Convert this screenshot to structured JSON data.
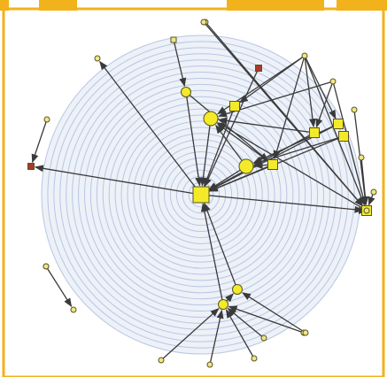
{
  "theme": {
    "frame_color": "#f2b21b",
    "background": "#ffffff",
    "ring_color": "#b9c6e2",
    "edge_color": "#3a3a3a",
    "node_fill": "#f3ea2a",
    "node_stroke": "#5b5420",
    "leaf_fill": "#efe68a",
    "highlight_node_fill": "#a83a2a"
  },
  "graph": {
    "layout": "radial",
    "ring_count": 26,
    "nodes": [
      {
        "id": "hub",
        "shape": "square",
        "kind": "root"
      },
      {
        "id": "n2",
        "shape": "circle",
        "kind": "major"
      },
      {
        "id": "n3",
        "shape": "circle",
        "kind": "major"
      },
      {
        "id": "n4",
        "shape": "circle",
        "kind": "minor"
      },
      {
        "id": "n5",
        "shape": "square",
        "kind": "minor"
      },
      {
        "id": "n6",
        "shape": "square",
        "kind": "minor"
      },
      {
        "id": "n7",
        "shape": "square",
        "kind": "minor"
      },
      {
        "id": "n8",
        "shape": "square",
        "kind": "minor"
      },
      {
        "id": "n9",
        "shape": "circle",
        "kind": "minor"
      },
      {
        "id": "n10",
        "shape": "circle",
        "kind": "minor"
      },
      {
        "id": "n11",
        "shape": "square",
        "kind": "minor"
      },
      {
        "id": "n12",
        "shape": "square",
        "kind": "minor"
      },
      {
        "id": "red1",
        "shape": "square",
        "kind": "highlight"
      },
      {
        "id": "red2",
        "shape": "square",
        "kind": "highlight"
      },
      {
        "id": "a1",
        "shape": "circle",
        "kind": "leaf"
      },
      {
        "id": "a2",
        "shape": "square",
        "kind": "leaf"
      },
      {
        "id": "a3",
        "shape": "circle",
        "kind": "leaf"
      },
      {
        "id": "a4",
        "shape": "circle",
        "kind": "leaf"
      },
      {
        "id": "a5",
        "shape": "circle",
        "kind": "leaf"
      },
      {
        "id": "a6",
        "shape": "circle",
        "kind": "leaf"
      },
      {
        "id": "a7",
        "shape": "circle",
        "kind": "leaf"
      },
      {
        "id": "a8",
        "shape": "circle",
        "kind": "leaf"
      },
      {
        "id": "a9",
        "shape": "circle",
        "kind": "leaf"
      },
      {
        "id": "a10",
        "shape": "circle",
        "kind": "leaf"
      },
      {
        "id": "a11",
        "shape": "circle",
        "kind": "leaf"
      },
      {
        "id": "a12",
        "shape": "circle",
        "kind": "leaf"
      },
      {
        "id": "a13",
        "shape": "circle",
        "kind": "leaf"
      },
      {
        "id": "a14",
        "shape": "circle",
        "kind": "leaf"
      },
      {
        "id": "a15",
        "shape": "circle",
        "kind": "leaf"
      },
      {
        "id": "a16",
        "shape": "circle",
        "kind": "leaf"
      },
      {
        "id": "a17",
        "shape": "circle",
        "kind": "leaf"
      },
      {
        "id": "a18",
        "shape": "circle",
        "kind": "leaf"
      },
      {
        "id": "a19",
        "shape": "circle",
        "kind": "leaf"
      },
      {
        "id": "a20",
        "shape": "circle",
        "kind": "leaf"
      }
    ],
    "edges": [
      [
        "hub",
        "a1"
      ],
      [
        "hub",
        "red1"
      ],
      [
        "hub",
        "a15"
      ],
      [
        "n2",
        "hub"
      ],
      [
        "n3",
        "hub"
      ],
      [
        "n4",
        "hub"
      ],
      [
        "n5",
        "hub"
      ],
      [
        "n6",
        "hub"
      ],
      [
        "n7",
        "hub"
      ],
      [
        "n8",
        "hub"
      ],
      [
        "n9",
        "hub"
      ],
      [
        "n10",
        "hub"
      ],
      [
        "n11",
        "hub"
      ],
      [
        "red2",
        "hub"
      ],
      [
        "a13",
        "n3"
      ],
      [
        "a13",
        "n5"
      ],
      [
        "a13",
        "n6"
      ],
      [
        "a13",
        "n7"
      ],
      [
        "a13",
        "n11"
      ],
      [
        "a13",
        "n12"
      ],
      [
        "a14",
        "n3"
      ],
      [
        "a14",
        "n7"
      ],
      [
        "a14",
        "n12"
      ],
      [
        "a15",
        "n3"
      ],
      [
        "a15",
        "n12"
      ],
      [
        "a12",
        "n12"
      ],
      [
        "a16",
        "n12"
      ],
      [
        "a17",
        "n12"
      ],
      [
        "n6",
        "n2"
      ],
      [
        "n11",
        "n2"
      ],
      [
        "n8",
        "n2"
      ],
      [
        "n2",
        "n3"
      ],
      [
        "n6",
        "n3"
      ],
      [
        "n7",
        "n3"
      ],
      [
        "n4",
        "n6"
      ],
      [
        "a2",
        "n4"
      ],
      [
        "n9",
        "n10"
      ],
      [
        "a3",
        "n9"
      ],
      [
        "a4",
        "n9"
      ],
      [
        "a5",
        "n9"
      ],
      [
        "a6",
        "n9"
      ],
      [
        "a7",
        "n9"
      ],
      [
        "a8",
        "n10"
      ],
      [
        "a10",
        "a11"
      ],
      [
        "a18",
        "red1"
      ],
      [
        "a19",
        "n12"
      ],
      [
        "a20",
        "n12"
      ]
    ]
  }
}
